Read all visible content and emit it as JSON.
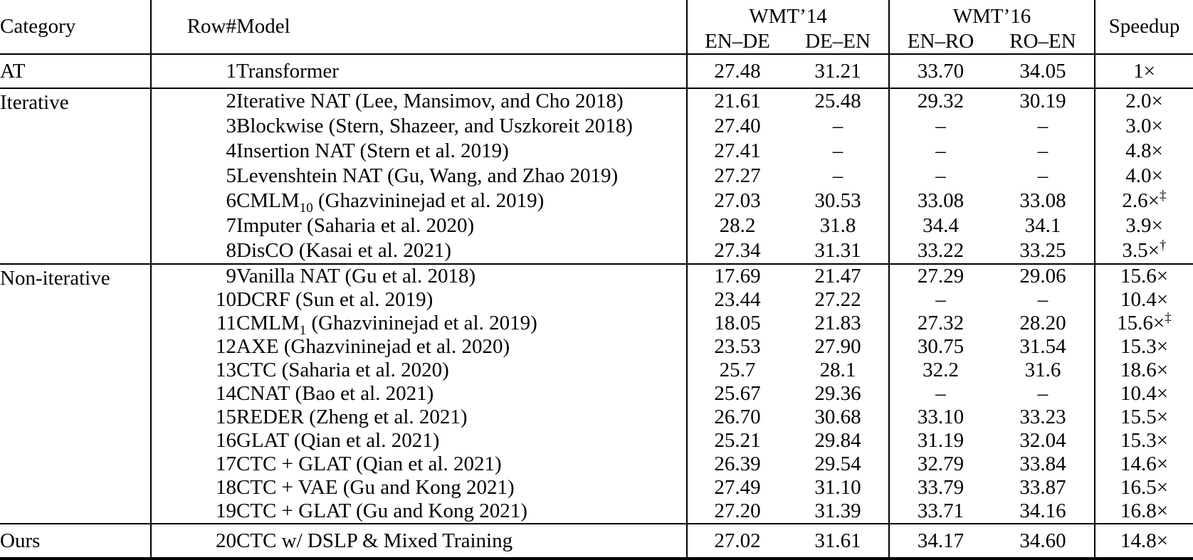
{
  "table": {
    "header": {
      "category": "Category",
      "row_num": "Row#",
      "model": "Model",
      "group1": "WMT’14",
      "group2": "WMT’16",
      "col1": "EN–DE",
      "col2": "DE–EN",
      "col3": "EN–RO",
      "col4": "RO–EN",
      "speedup": "Speedup"
    },
    "sections": [
      {
        "category": "AT",
        "rows": [
          {
            "num": "1",
            "model": "Transformer",
            "en_de": "27.48",
            "de_en": "31.21",
            "en_ro": "33.70",
            "ro_en": "34.05",
            "speedup": "1×"
          }
        ]
      },
      {
        "category": "Iterative",
        "rows": [
          {
            "num": "2",
            "model": "Iterative NAT (Lee, Mansimov, and Cho 2018)",
            "en_de": "21.61",
            "de_en": "25.48",
            "en_ro": "29.32",
            "ro_en": "30.19",
            "speedup": "2.0×"
          },
          {
            "num": "3",
            "model": "Blockwise (Stern, Shazeer, and Uszkoreit 2018)",
            "en_de": "27.40",
            "de_en": "–",
            "en_ro": "–",
            "ro_en": "–",
            "speedup": "3.0×"
          },
          {
            "num": "4",
            "model": "Insertion NAT (Stern et al. 2019)",
            "en_de": "27.41",
            "de_en": "–",
            "en_ro": "–",
            "ro_en": "–",
            "speedup": "4.8×"
          },
          {
            "num": "5",
            "model": "Levenshtein NAT (Gu, Wang, and Zhao 2019)",
            "en_de": "27.27",
            "de_en": "–",
            "en_ro": "–",
            "ro_en": "–",
            "speedup": "4.0×"
          },
          {
            "num": "6",
            "model": "CMLM",
            "model_sub": "10",
            "model_rest": " (Ghazvininejad et al. 2019)",
            "en_de": "27.03",
            "de_en": "30.53",
            "en_ro": "33.08",
            "ro_en": "33.08",
            "speedup": "2.6×",
            "speedup_sup": "‡"
          },
          {
            "num": "7",
            "model": "Imputer (Saharia et al. 2020)",
            "en_de": "28.2",
            "de_en": "31.8",
            "en_ro": "34.4",
            "ro_en": "34.1",
            "speedup": "3.9×",
            "bold": [
              "en_de",
              "de_en",
              "en_ro"
            ]
          },
          {
            "num": "8",
            "model": "DisCO (Kasai et al. 2021)",
            "en_de": "27.34",
            "de_en": "31.31",
            "en_ro": "33.22",
            "ro_en": "33.25",
            "speedup": "3.5×",
            "speedup_sup": "†"
          }
        ]
      },
      {
        "category": "Non-iterative",
        "rows": [
          {
            "num": "9",
            "model": "Vanilla NAT (Gu et al. 2018)",
            "en_de": "17.69",
            "de_en": "21.47",
            "en_ro": "27.29",
            "ro_en": "29.06",
            "speedup": "15.6×"
          },
          {
            "num": "10",
            "model": "DCRF (Sun et al. 2019)",
            "en_de": "23.44",
            "de_en": "27.22",
            "en_ro": "–",
            "ro_en": "–",
            "speedup": "10.4×"
          },
          {
            "num": "11",
            "model": "CMLM",
            "model_sub": "1",
            "model_rest": " (Ghazvininejad et al. 2019)",
            "en_de": "18.05",
            "de_en": "21.83",
            "en_ro": "27.32",
            "ro_en": "28.20",
            "speedup": "15.6×",
            "speedup_sup": "‡"
          },
          {
            "num": "12",
            "model": "AXE (Ghazvininejad et al. 2020)",
            "en_de": "23.53",
            "de_en": "27.90",
            "en_ro": "30.75",
            "ro_en": "31.54",
            "speedup": "15.3×"
          },
          {
            "num": "13",
            "model": "CTC (Saharia et al. 2020)",
            "en_de": "25.7",
            "de_en": "28.1",
            "en_ro": "32.2",
            "ro_en": "31.6",
            "speedup": "18.6×"
          },
          {
            "num": "14",
            "model": "CNAT (Bao et al. 2021)",
            "en_de": "25.67",
            "de_en": "29.36",
            "en_ro": "–",
            "ro_en": "–",
            "speedup": "10.4×"
          },
          {
            "num": "15",
            "model": "REDER (Zheng et al. 2021)",
            "en_de": "26.70",
            "de_en": "30.68",
            "en_ro": "33.10",
            "ro_en": "33.23",
            "speedup": "15.5×"
          },
          {
            "num": "16",
            "model": "GLAT (Qian et al. 2021)",
            "en_de": "25.21",
            "de_en": "29.84",
            "en_ro": "31.19",
            "ro_en": "32.04",
            "speedup": "15.3×"
          },
          {
            "num": "17",
            "model": "CTC + GLAT (Qian et al. 2021)",
            "en_de": "26.39",
            "de_en": "29.54",
            "en_ro": "32.79",
            "ro_en": "33.84",
            "speedup": "14.6×"
          },
          {
            "num": "18",
            "model": "CTC + VAE (Gu and Kong 2021)",
            "en_de": "27.49",
            "de_en": "31.10",
            "en_ro": "33.79",
            "ro_en": "33.87",
            "speedup": "16.5×"
          },
          {
            "num": "19",
            "model": "CTC + GLAT (Gu and Kong 2021)",
            "en_de": "27.20",
            "de_en": "31.39",
            "en_ro": "33.71",
            "ro_en": "34.16",
            "speedup": "16.8×"
          }
        ]
      },
      {
        "category": "Ours",
        "rows": [
          {
            "num": "20",
            "model": "CTC w/ DSLP & Mixed Training",
            "en_de": "27.02",
            "de_en": "31.61",
            "en_ro": "34.17",
            "ro_en": "34.60",
            "speedup": "14.8×",
            "bold": [
              "ro_en"
            ]
          }
        ]
      }
    ]
  }
}
